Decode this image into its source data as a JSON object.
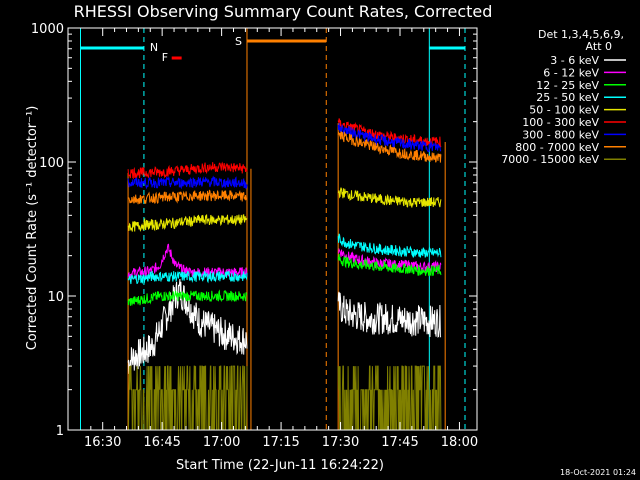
{
  "chart_data": {
    "type": "line",
    "title": "RHESSI Observing Summary Count Rates, Corrected",
    "xlabel": "Start Time (22-Jun-11 16:24:22)",
    "ylabel": "Corrected Count Rate (s⁻¹ detector⁻¹)",
    "ylog": true,
    "ylim": [
      1,
      1000
    ],
    "xlim_minutes": [
      0,
      97
    ],
    "x_ticks": [
      "16:30",
      "16:45",
      "17:00",
      "17:15",
      "17:30",
      "17:45",
      "18:00"
    ],
    "y_ticks": [
      "1",
      "10",
      "100",
      "1000"
    ],
    "legend_header": [
      "Det 1,3,4,5,6,9,",
      "Att 0"
    ],
    "legend_position": "right",
    "timestamp": "18-Oct-2021 01:24",
    "markers": {
      "night": [
        {
          "label": "N",
          "start_min": 0,
          "end_min": 16,
          "color": "#00ffff"
        },
        {
          "label": "",
          "start_min": 88,
          "end_min": 97,
          "color": "#00ffff"
        }
      ],
      "saa": {
        "label": "S",
        "start_min": 42,
        "end_min": 62,
        "color": "#ff8000"
      },
      "flare": {
        "label": "F",
        "start_min": 22,
        "end_min": 24,
        "color": "#ff0000"
      },
      "interval_lines": [
        {
          "min": 0,
          "color": "#00ffff",
          "style": "solid"
        },
        {
          "min": 16,
          "color": "#00ffff",
          "style": "dashed"
        },
        {
          "min": 42,
          "color": "#ff8000",
          "style": "solid"
        },
        {
          "min": 62,
          "color": "#ff8000",
          "style": "dashed"
        },
        {
          "min": 88,
          "color": "#00ffff",
          "style": "solid"
        },
        {
          "min": 97,
          "color": "#00ffff",
          "style": "dashed"
        }
      ],
      "segments": [
        {
          "start_min": 12,
          "end_min": 43
        },
        {
          "start_min": 65,
          "end_min": 92
        }
      ]
    },
    "series": [
      {
        "name": "3 - 6 keV",
        "color": "#ffffff",
        "seg1": [
          [
            12,
            3.2
          ],
          [
            14,
            3.6
          ],
          [
            16,
            3.8
          ],
          [
            18,
            4.2
          ],
          [
            20,
            5.5
          ],
          [
            22,
            7.5
          ],
          [
            24,
            10
          ],
          [
            25,
            11
          ],
          [
            27,
            9
          ],
          [
            28.5,
            7.5
          ],
          [
            30,
            6.5
          ],
          [
            32,
            6
          ],
          [
            34,
            5.6
          ],
          [
            36,
            5.2
          ],
          [
            38,
            5
          ],
          [
            40,
            4.8
          ],
          [
            42,
            4.7
          ]
        ],
        "seg2": [
          [
            65,
            8.5
          ],
          [
            67,
            7.5
          ],
          [
            69,
            7.2
          ],
          [
            71,
            7
          ],
          [
            73,
            6.8
          ],
          [
            75,
            6.8
          ],
          [
            77,
            6.8
          ],
          [
            79,
            6.7
          ],
          [
            81,
            6.7
          ],
          [
            83,
            6.6
          ],
          [
            85,
            6.6
          ],
          [
            87,
            6.5
          ],
          [
            89,
            6.5
          ],
          [
            91,
            6.5
          ]
        ]
      },
      {
        "name": "6 - 12 keV",
        "color": "#ff00ff",
        "seg1": [
          [
            12,
            14.5
          ],
          [
            14,
            15
          ],
          [
            16,
            15
          ],
          [
            18,
            15.5
          ],
          [
            20,
            17
          ],
          [
            21,
            20
          ],
          [
            22,
            23
          ],
          [
            23,
            20
          ],
          [
            24,
            17
          ],
          [
            26,
            15.5
          ],
          [
            28,
            15
          ],
          [
            30,
            15
          ],
          [
            32,
            15
          ],
          [
            34,
            15
          ],
          [
            36,
            15
          ],
          [
            38,
            15
          ],
          [
            40,
            15
          ],
          [
            42,
            15
          ]
        ],
        "seg2": [
          [
            65,
            22
          ],
          [
            67,
            20
          ],
          [
            69,
            19
          ],
          [
            71,
            18.5
          ],
          [
            73,
            18
          ],
          [
            75,
            17.5
          ],
          [
            77,
            17.5
          ],
          [
            79,
            17
          ],
          [
            81,
            17
          ],
          [
            83,
            17
          ],
          [
            85,
            16.5
          ],
          [
            87,
            16.5
          ],
          [
            89,
            16.5
          ],
          [
            91,
            16.5
          ]
        ]
      },
      {
        "name": "12 - 25 keV",
        "color": "#00ff00",
        "seg1": [
          [
            12,
            9
          ],
          [
            14,
            9.2
          ],
          [
            16,
            9.5
          ],
          [
            18,
            9.7
          ],
          [
            20,
            10
          ],
          [
            22,
            10
          ],
          [
            24,
            10
          ],
          [
            26,
            10
          ],
          [
            28,
            10
          ],
          [
            30,
            10
          ],
          [
            32,
            10
          ],
          [
            34,
            10
          ],
          [
            36,
            10
          ],
          [
            38,
            10
          ],
          [
            40,
            10
          ],
          [
            42,
            10
          ]
        ],
        "seg2": [
          [
            65,
            19
          ],
          [
            67,
            18
          ],
          [
            69,
            17.5
          ],
          [
            71,
            17
          ],
          [
            73,
            17
          ],
          [
            75,
            16.5
          ],
          [
            77,
            16.5
          ],
          [
            79,
            16
          ],
          [
            81,
            16
          ],
          [
            83,
            16
          ],
          [
            85,
            15.5
          ],
          [
            87,
            15.5
          ],
          [
            89,
            15.5
          ],
          [
            91,
            15.5
          ]
        ]
      },
      {
        "name": "25 - 50 keV",
        "color": "#00ffff",
        "seg1": [
          [
            12,
            13
          ],
          [
            14,
            13.5
          ],
          [
            16,
            13.5
          ],
          [
            18,
            14
          ],
          [
            20,
            14
          ],
          [
            22,
            14
          ],
          [
            24,
            14
          ],
          [
            26,
            14
          ],
          [
            28,
            14
          ],
          [
            30,
            14
          ],
          [
            32,
            14
          ],
          [
            34,
            14
          ],
          [
            36,
            14
          ],
          [
            38,
            14
          ],
          [
            40,
            14
          ],
          [
            42,
            14
          ]
        ],
        "seg2": [
          [
            65,
            27
          ],
          [
            67,
            25
          ],
          [
            69,
            24
          ],
          [
            71,
            23.5
          ],
          [
            73,
            23
          ],
          [
            75,
            22.5
          ],
          [
            77,
            22
          ],
          [
            79,
            22
          ],
          [
            81,
            21.5
          ],
          [
            83,
            21.5
          ],
          [
            85,
            21
          ],
          [
            87,
            21
          ],
          [
            89,
            21
          ],
          [
            91,
            21
          ]
        ]
      },
      {
        "name": "50 - 100 keV",
        "color": "#e6e600",
        "seg1": [
          [
            12,
            33
          ],
          [
            14,
            33
          ],
          [
            16,
            34
          ],
          [
            18,
            34
          ],
          [
            20,
            34
          ],
          [
            22,
            35
          ],
          [
            24,
            35
          ],
          [
            26,
            36
          ],
          [
            28,
            36
          ],
          [
            30,
            37
          ],
          [
            32,
            37
          ],
          [
            34,
            37
          ],
          [
            36,
            37
          ],
          [
            38,
            37
          ],
          [
            40,
            37
          ],
          [
            42,
            37
          ]
        ],
        "seg2": [
          [
            65,
            60
          ],
          [
            67,
            58
          ],
          [
            69,
            56
          ],
          [
            71,
            55
          ],
          [
            73,
            54
          ],
          [
            75,
            53
          ],
          [
            77,
            52
          ],
          [
            79,
            51
          ],
          [
            81,
            51
          ],
          [
            83,
            50
          ],
          [
            85,
            50
          ],
          [
            87,
            50
          ],
          [
            89,
            50
          ],
          [
            91,
            50
          ]
        ]
      },
      {
        "name": "100 - 300 keV",
        "color": "#ff0000",
        "seg1": [
          [
            12,
            83
          ],
          [
            14,
            83
          ],
          [
            16,
            83
          ],
          [
            18,
            84
          ],
          [
            20,
            84
          ],
          [
            22,
            85
          ],
          [
            24,
            86
          ],
          [
            26,
            87
          ],
          [
            28,
            88
          ],
          [
            30,
            90
          ],
          [
            32,
            91
          ],
          [
            34,
            92
          ],
          [
            36,
            92
          ],
          [
            38,
            91
          ],
          [
            40,
            90
          ],
          [
            42,
            89
          ]
        ],
        "seg2": [
          [
            65,
            195
          ],
          [
            67,
            185
          ],
          [
            69,
            178
          ],
          [
            71,
            170
          ],
          [
            73,
            165
          ],
          [
            75,
            160
          ],
          [
            77,
            155
          ],
          [
            79,
            152
          ],
          [
            81,
            150
          ],
          [
            83,
            147
          ],
          [
            85,
            145
          ],
          [
            87,
            143
          ],
          [
            89,
            142
          ],
          [
            91,
            141
          ]
        ]
      },
      {
        "name": "300 - 800 keV",
        "color": "#0000ff",
        "seg1": [
          [
            12,
            70
          ],
          [
            14,
            70
          ],
          [
            16,
            70
          ],
          [
            18,
            70
          ],
          [
            20,
            70
          ],
          [
            22,
            70
          ],
          [
            24,
            70
          ],
          [
            26,
            70
          ],
          [
            28,
            71
          ],
          [
            30,
            71
          ],
          [
            32,
            71
          ],
          [
            34,
            71
          ],
          [
            36,
            70
          ],
          [
            38,
            70
          ],
          [
            40,
            70
          ],
          [
            42,
            69
          ]
        ],
        "seg2": [
          [
            65,
            180
          ],
          [
            67,
            172
          ],
          [
            69,
            165
          ],
          [
            71,
            158
          ],
          [
            73,
            152
          ],
          [
            75,
            147
          ],
          [
            77,
            143
          ],
          [
            79,
            140
          ],
          [
            81,
            137
          ],
          [
            83,
            135
          ],
          [
            85,
            133
          ],
          [
            87,
            131
          ],
          [
            89,
            130
          ],
          [
            91,
            128
          ]
        ]
      },
      {
        "name": "800 - 7000 keV",
        "color": "#ff8000",
        "seg1": [
          [
            12,
            53
          ],
          [
            14,
            53
          ],
          [
            16,
            53
          ],
          [
            18,
            54
          ],
          [
            20,
            54
          ],
          [
            22,
            55
          ],
          [
            24,
            55
          ],
          [
            26,
            55
          ],
          [
            28,
            56
          ],
          [
            30,
            56
          ],
          [
            32,
            56
          ],
          [
            34,
            56
          ],
          [
            36,
            56
          ],
          [
            38,
            56
          ],
          [
            40,
            55
          ],
          [
            42,
            55
          ]
        ],
        "seg2": [
          [
            65,
            160
          ],
          [
            67,
            152
          ],
          [
            69,
            145
          ],
          [
            71,
            138
          ],
          [
            73,
            133
          ],
          [
            75,
            128
          ],
          [
            77,
            124
          ],
          [
            79,
            120
          ],
          [
            81,
            117
          ],
          [
            83,
            114
          ],
          [
            85,
            112
          ],
          [
            87,
            110
          ],
          [
            89,
            108
          ],
          [
            91,
            107
          ]
        ]
      },
      {
        "name": "7000 - 15000 keV",
        "color": "#808000",
        "seg1": [
          [
            12,
            1.5
          ],
          [
            16,
            1.6
          ],
          [
            20,
            1.8
          ],
          [
            24,
            2
          ],
          [
            28,
            2.2
          ],
          [
            32,
            2.2
          ],
          [
            36,
            2.2
          ],
          [
            40,
            2.2
          ],
          [
            42,
            2.2
          ]
        ],
        "seg2": [
          [
            65,
            1.6
          ],
          [
            69,
            1.7
          ],
          [
            73,
            1.8
          ],
          [
            77,
            1.9
          ],
          [
            81,
            2
          ],
          [
            85,
            2
          ],
          [
            89,
            2.1
          ],
          [
            91,
            2.1
          ]
        ]
      }
    ]
  }
}
